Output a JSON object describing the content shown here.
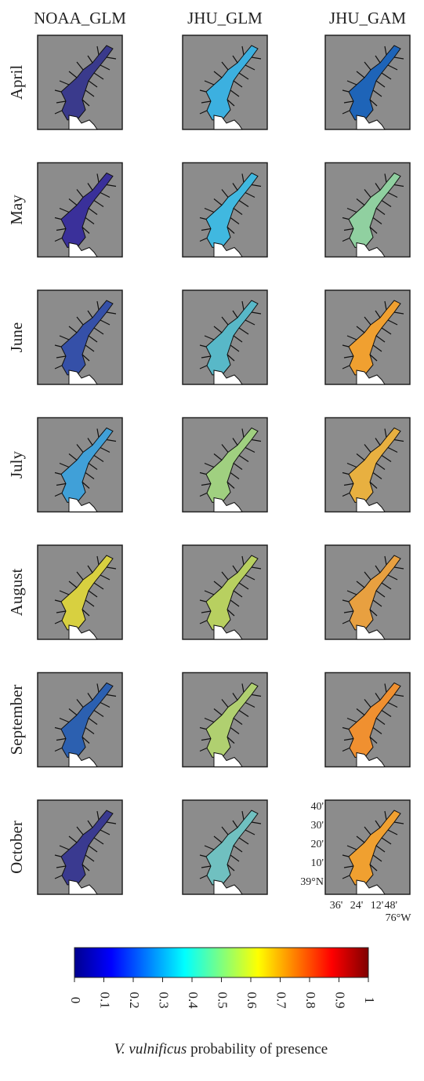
{
  "column_headers": [
    "NOAA_GLM",
    "JHU_GLM",
    "JHU_GAM"
  ],
  "row_labels": [
    "April",
    "May",
    "June",
    "July",
    "August",
    "September",
    "October"
  ],
  "panel_colors": [
    [
      "#3a3a8c",
      "#3cb0e0",
      "#1e64b8"
    ],
    [
      "#3a309a",
      "#40b8e0",
      "#90d0a0"
    ],
    [
      "#3550a8",
      "#58b8c8",
      "#f0a030"
    ],
    [
      "#40a0d8",
      "#a0d080",
      "#e8b040"
    ],
    [
      "#d8d040",
      "#b8d060",
      "#e8a040"
    ],
    [
      "#2c60b0",
      "#b0d070",
      "#f09030"
    ],
    [
      "#3a3a90",
      "#70c0c0",
      "#f0a030"
    ]
  ],
  "colorbar": {
    "colormap": "jet",
    "ticks": [
      0,
      0.1,
      0.2,
      0.3,
      0.4,
      0.5,
      0.6,
      0.7,
      0.8,
      0.9,
      1
    ],
    "label_italic": "V. vulnificus",
    "label": "probability of presence"
  },
  "map_axes": {
    "lat_labels": [
      "40'",
      "30'",
      "20'",
      "10'",
      "39°N"
    ],
    "lon_labels": [
      "36'",
      "24'",
      "12'",
      "48'"
    ],
    "lon_unit": "76°W"
  }
}
